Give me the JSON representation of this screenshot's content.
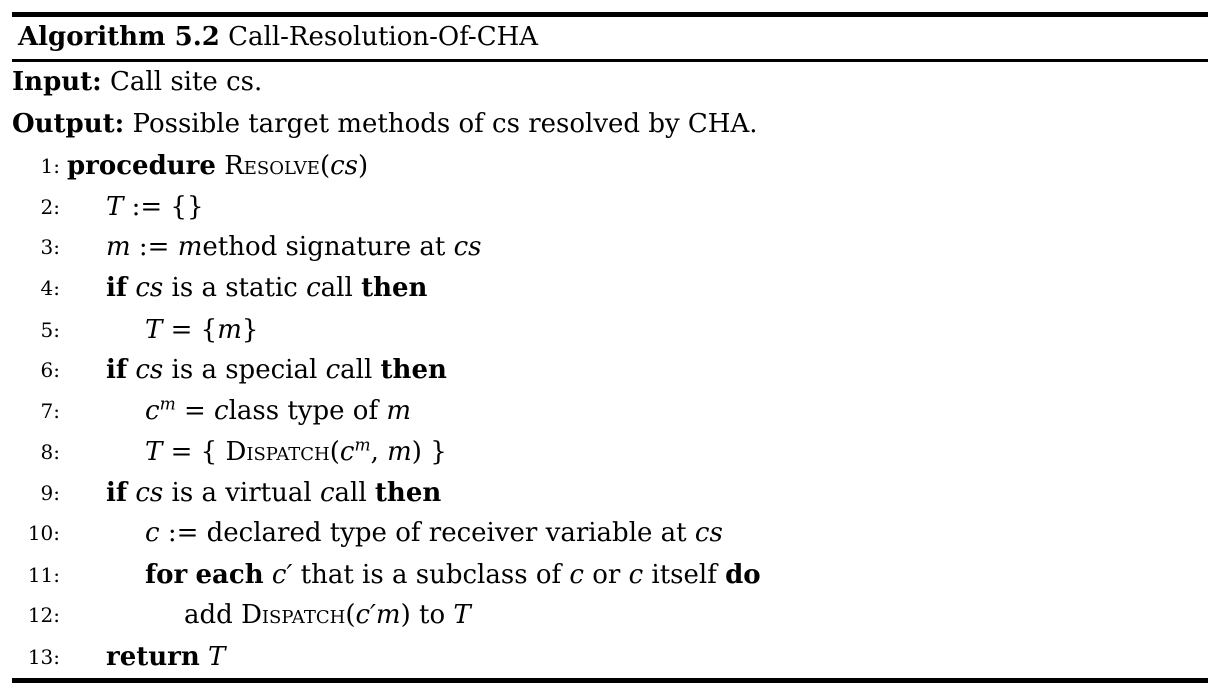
{
  "caption": {
    "label": "Algorithm 5.2",
    "title": "Call-Resolution-Of-CHA"
  },
  "input": {
    "label": "Input:",
    "text": "Call site cs."
  },
  "output": {
    "label": "Output:",
    "text": "Possible target methods of cs resolved by CHA."
  },
  "lines": [
    {
      "num": "1:",
      "text": "procedure Resolve(cs)"
    },
    {
      "num": "2:",
      "text": "T := {}"
    },
    {
      "num": "3:",
      "text": "m := method signature at cs"
    },
    {
      "num": "4:",
      "text": "if cs is a static call then"
    },
    {
      "num": "5:",
      "text": "T = {m}"
    },
    {
      "num": "6:",
      "text": "if cs is a special call then"
    },
    {
      "num": "7:",
      "text": "c^m = class type of m"
    },
    {
      "num": "8:",
      "text": "T = { Dispatch(c^m, m) }"
    },
    {
      "num": "9:",
      "text": "if cs is a virtual call then"
    },
    {
      "num": "10:",
      "text": "c := declared type of receiver variable at cs"
    },
    {
      "num": "11:",
      "text": "for each c′ that is a subclass of c or c itself do"
    },
    {
      "num": "12:",
      "text": "add Dispatch(c′m) to T"
    },
    {
      "num": "13:",
      "text": "return T"
    }
  ]
}
